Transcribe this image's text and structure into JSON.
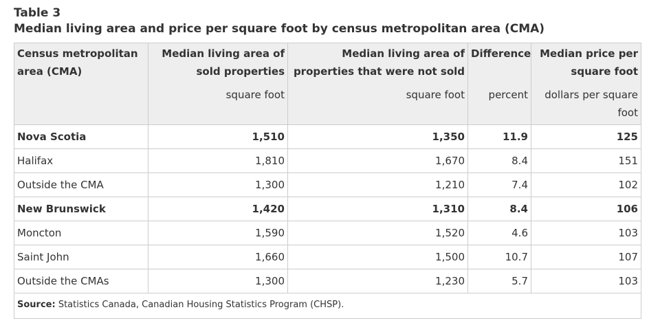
{
  "table_number": "Table 3",
  "table_title": "Median living area and price per square foot by census metropolitan area (CMA)",
  "columns": [
    {
      "header": "Census metropolitan area (CMA)",
      "unit": ""
    },
    {
      "header": "Median living area of sold properties",
      "unit": "square foot"
    },
    {
      "header": "Median living area of properties that were not sold",
      "unit": "square foot"
    },
    {
      "header": "Difference",
      "unit": "percent"
    },
    {
      "header": "Median price per square foot",
      "unit": "dollars per square foot"
    }
  ],
  "rows": [
    {
      "area": "Nova Scotia",
      "sold": "1,510",
      "not_sold": "1,350",
      "difference": "11.9",
      "price": "125",
      "bold": true
    },
    {
      "area": "Halifax",
      "sold": "1,810",
      "not_sold": "1,670",
      "difference": "8.4",
      "price": "151",
      "bold": false
    },
    {
      "area": "Outside the CMA",
      "sold": "1,300",
      "not_sold": "1,210",
      "difference": "7.4",
      "price": "102",
      "bold": false
    },
    {
      "area": "New Brunswick",
      "sold": "1,420",
      "not_sold": "1,310",
      "difference": "8.4",
      "price": "106",
      "bold": true
    },
    {
      "area": "Moncton",
      "sold": "1,590",
      "not_sold": "1,520",
      "difference": "4.6",
      "price": "103",
      "bold": false
    },
    {
      "area": "Saint John",
      "sold": "1,660",
      "not_sold": "1,500",
      "difference": "10.7",
      "price": "107",
      "bold": false
    },
    {
      "area": "Outside the CMAs",
      "sold": "1,300",
      "not_sold": "1,230",
      "difference": "5.7",
      "price": "103",
      "bold": false
    }
  ],
  "source": {
    "label": "Source:",
    "text": "Statistics Canada, Canadian Housing Statistics Program (CHSP)."
  }
}
